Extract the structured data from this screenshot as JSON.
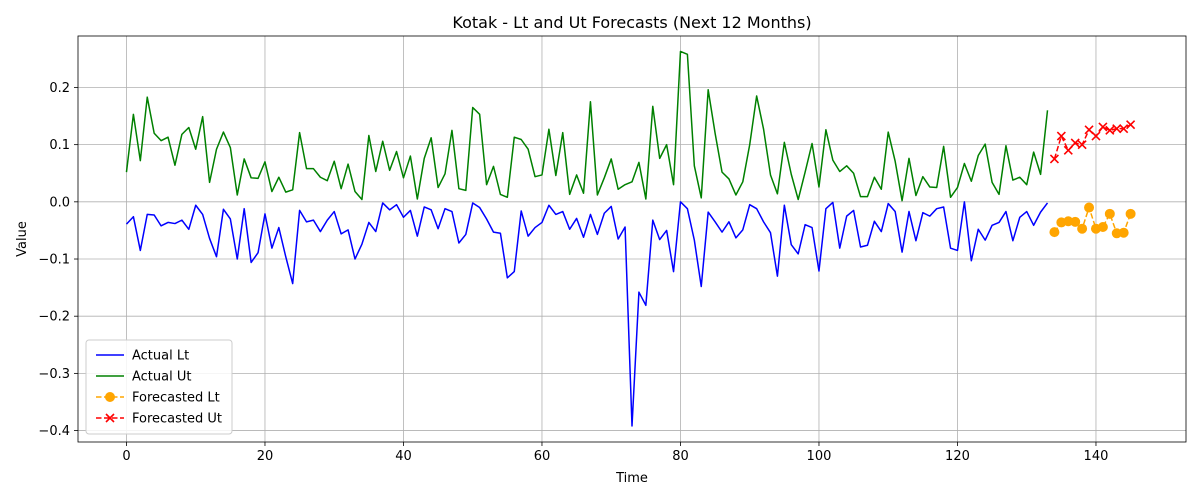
{
  "chart_data": {
    "type": "line",
    "title": "Kotak - Lt and Ut Forecasts (Next 12 Months)",
    "xlabel": "Time",
    "ylabel": "Value",
    "xlim": [
      -7,
      153
    ],
    "ylim": [
      -0.42,
      0.29
    ],
    "x_ticks": [
      0,
      20,
      40,
      60,
      80,
      100,
      120,
      140
    ],
    "y_ticks": [
      -0.4,
      -0.3,
      -0.2,
      -0.1,
      0.0,
      0.1,
      0.2
    ],
    "y_tick_labels": [
      "−0.4",
      "−0.3",
      "−0.2",
      "−0.1",
      "0.0",
      "0.1",
      "0.2"
    ],
    "grid": true,
    "legend_position": "lower-left",
    "series": [
      {
        "name": "Actual Lt",
        "color": "#0000ff",
        "style": "solid",
        "marker": "none",
        "x_start": 0,
        "values": [
          -0.039,
          -0.026,
          -0.085,
          -0.022,
          -0.023,
          -0.042,
          -0.036,
          -0.038,
          -0.032,
          -0.048,
          -0.006,
          -0.022,
          -0.064,
          -0.096,
          -0.013,
          -0.03,
          -0.1,
          -0.012,
          -0.106,
          -0.089,
          -0.021,
          -0.081,
          -0.045,
          -0.096,
          -0.143,
          -0.015,
          -0.035,
          -0.032,
          -0.052,
          -0.032,
          -0.017,
          -0.056,
          -0.049,
          -0.1,
          -0.074,
          -0.036,
          -0.052,
          -0.002,
          -0.014,
          -0.005,
          -0.027,
          -0.015,
          -0.06,
          -0.009,
          -0.014,
          -0.047,
          -0.012,
          -0.017,
          -0.072,
          -0.057,
          -0.002,
          -0.01,
          -0.03,
          -0.053,
          -0.055,
          -0.133,
          -0.122,
          -0.016,
          -0.06,
          -0.045,
          -0.036,
          -0.006,
          -0.022,
          -0.017,
          -0.048,
          -0.029,
          -0.062,
          -0.022,
          -0.057,
          -0.02,
          -0.008,
          -0.065,
          -0.044,
          -0.392,
          -0.158,
          -0.181,
          -0.032,
          -0.066,
          -0.05,
          -0.122,
          0.0,
          -0.012,
          -0.067,
          -0.148,
          -0.018,
          -0.035,
          -0.053,
          -0.035,
          -0.063,
          -0.049,
          -0.005,
          -0.012,
          -0.035,
          -0.054,
          -0.13,
          -0.006,
          -0.075,
          -0.091,
          -0.04,
          -0.045,
          -0.121,
          -0.012,
          -0.001,
          -0.081,
          -0.025,
          -0.015,
          -0.079,
          -0.076,
          -0.034,
          -0.052,
          -0.003,
          -0.017,
          -0.088,
          -0.017,
          -0.068,
          -0.019,
          -0.025,
          -0.012,
          -0.009,
          -0.081,
          -0.085,
          0.0,
          -0.103,
          -0.048,
          -0.067,
          -0.041,
          -0.036,
          -0.017,
          -0.068,
          -0.027,
          -0.017,
          -0.041,
          -0.018,
          -0.002
        ]
      },
      {
        "name": "Actual Ut",
        "color": "#008000",
        "style": "solid",
        "marker": "none",
        "x_start": 0,
        "values": [
          0.052,
          0.153,
          0.072,
          0.183,
          0.12,
          0.107,
          0.113,
          0.064,
          0.118,
          0.13,
          0.092,
          0.149,
          0.034,
          0.092,
          0.122,
          0.095,
          0.012,
          0.075,
          0.042,
          0.041,
          0.07,
          0.018,
          0.043,
          0.017,
          0.021,
          0.121,
          0.058,
          0.058,
          0.043,
          0.037,
          0.071,
          0.023,
          0.066,
          0.018,
          0.004,
          0.116,
          0.053,
          0.106,
          0.055,
          0.088,
          0.042,
          0.08,
          0.005,
          0.076,
          0.112,
          0.025,
          0.049,
          0.125,
          0.023,
          0.02,
          0.165,
          0.153,
          0.03,
          0.062,
          0.013,
          0.008,
          0.113,
          0.109,
          0.092,
          0.044,
          0.047,
          0.127,
          0.046,
          0.121,
          0.013,
          0.047,
          0.015,
          0.175,
          0.012,
          0.042,
          0.075,
          0.022,
          0.03,
          0.035,
          0.069,
          0.005,
          0.167,
          0.076,
          0.1,
          0.03,
          0.263,
          0.258,
          0.063,
          0.007,
          0.196,
          0.12,
          0.052,
          0.04,
          0.012,
          0.035,
          0.1,
          0.185,
          0.127,
          0.047,
          0.014,
          0.104,
          0.048,
          0.004,
          0.052,
          0.102,
          0.026,
          0.126,
          0.073,
          0.053,
          0.063,
          0.05,
          0.009,
          0.009,
          0.043,
          0.022,
          0.122,
          0.071,
          0.002,
          0.076,
          0.011,
          0.044,
          0.026,
          0.025,
          0.097,
          0.008,
          0.025,
          0.067,
          0.036,
          0.081,
          0.101,
          0.034,
          0.013,
          0.098,
          0.038,
          0.043,
          0.03,
          0.087,
          0.048,
          0.16
        ]
      },
      {
        "name": "Forecasted Lt",
        "color": "#ffa500",
        "style": "dashed",
        "marker": "circle",
        "x_start": 134,
        "values": [
          -0.053,
          -0.036,
          -0.034,
          -0.035,
          -0.047,
          -0.01,
          -0.047,
          -0.044,
          -0.021,
          -0.055,
          -0.054,
          -0.021
        ]
      },
      {
        "name": "Forecasted Ut",
        "color": "#ff0000",
        "style": "dashed",
        "marker": "x",
        "x_start": 134,
        "values": [
          0.075,
          0.115,
          0.09,
          0.103,
          0.1,
          0.126,
          0.115,
          0.131,
          0.125,
          0.128,
          0.128,
          0.135
        ]
      }
    ]
  }
}
